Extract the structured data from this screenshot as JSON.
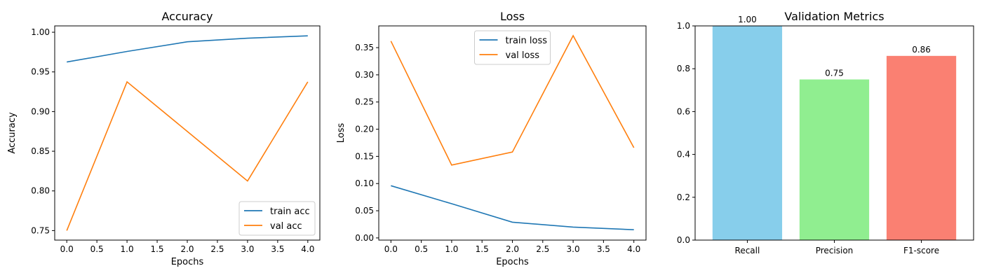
{
  "chart_data": [
    {
      "type": "line",
      "title": "Accuracy",
      "xlabel": "Epochs",
      "ylabel": "Accuracy",
      "x": [
        0,
        1,
        2,
        3,
        4
      ],
      "xlim": [
        -0.2,
        4.2
      ],
      "ylim": [
        0.738,
        1.008
      ],
      "xticks": [
        "0.0",
        "0.5",
        "1.0",
        "1.5",
        "2.0",
        "2.5",
        "3.0",
        "3.5",
        "4.0"
      ],
      "yticks": [
        "0.75",
        "0.80",
        "0.85",
        "0.90",
        "0.95",
        "1.00"
      ],
      "legend_position": "lower-right",
      "grid": false,
      "series": [
        {
          "name": "train acc",
          "color": "#1f77b4",
          "values": [
            0.9625,
            0.9758,
            0.988,
            0.9925,
            0.9955
          ]
        },
        {
          "name": "val acc",
          "color": "#ff7f0e",
          "values": [
            0.75,
            0.9375,
            0.875,
            0.8125,
            0.9375
          ]
        }
      ]
    },
    {
      "type": "line",
      "title": "Loss",
      "xlabel": "Epochs",
      "ylabel": "Loss",
      "x": [
        0,
        1,
        2,
        3,
        4
      ],
      "xlim": [
        -0.2,
        4.2
      ],
      "ylim": [
        -0.004,
        0.39
      ],
      "xticks": [
        "0.0",
        "0.5",
        "1.0",
        "1.5",
        "2.0",
        "2.5",
        "3.0",
        "3.5",
        "4.0"
      ],
      "yticks": [
        "0.00",
        "0.05",
        "0.10",
        "0.15",
        "0.20",
        "0.25",
        "0.30",
        "0.35"
      ],
      "legend_position": "upper-center",
      "grid": false,
      "series": [
        {
          "name": "train loss",
          "color": "#1f77b4",
          "values": [
            0.096,
            0.063,
            0.029,
            0.02,
            0.015
          ]
        },
        {
          "name": "val loss",
          "color": "#ff7f0e",
          "values": [
            0.362,
            0.134,
            0.158,
            0.372,
            0.166
          ]
        }
      ]
    },
    {
      "type": "bar",
      "title": "Validation Metrics",
      "xlabel": "",
      "ylabel": "",
      "categories": [
        "Recall",
        "Precision",
        "F1-score"
      ],
      "values": [
        1.0,
        0.75,
        0.86
      ],
      "value_labels": [
        "1.00",
        "0.75",
        "0.86"
      ],
      "colors": [
        "#87ceeb",
        "#90ee90",
        "#fa8072"
      ],
      "ylim": [
        0,
        1.0
      ],
      "yticks": [
        "0.0",
        "0.2",
        "0.4",
        "0.6",
        "0.8",
        "1.0"
      ],
      "grid": false
    }
  ]
}
